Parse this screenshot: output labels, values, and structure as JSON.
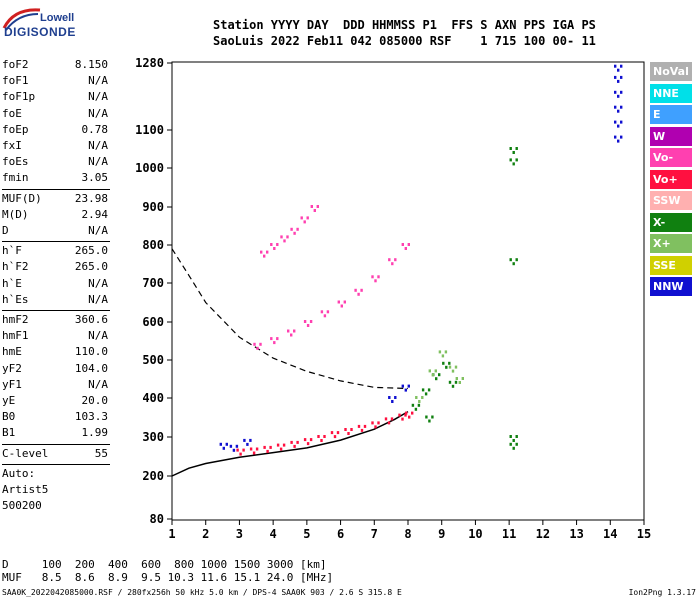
{
  "logo": {
    "line1": "Lowell",
    "line2": "DIGISONDE"
  },
  "header": {
    "row1": "Station YYYY DAY  DDD HHMMSS P1  FFS S AXN PPS IGA PS",
    "row2": "SaoLuis 2022 Feb11 042 085000 RSF    1 715 100 00- 11"
  },
  "params": [
    {
      "name": "foF2",
      "value": "8.150"
    },
    {
      "name": "foF1",
      "value": "N/A"
    },
    {
      "name": "foF1p",
      "value": "N/A"
    },
    {
      "name": "foE",
      "value": "N/A"
    },
    {
      "name": "foEp",
      "value": "0.78"
    },
    {
      "name": "fxI",
      "value": "N/A"
    },
    {
      "name": "foEs",
      "value": "N/A"
    },
    {
      "name": "fmin",
      "value": "3.05"
    },
    {
      "name": "MUF(D)",
      "value": "23.98"
    },
    {
      "name": "M(D)",
      "value": "2.94"
    },
    {
      "name": "D",
      "value": "N/A"
    },
    {
      "name": "h`F",
      "value": "265.0"
    },
    {
      "name": "h`F2",
      "value": "265.0"
    },
    {
      "name": "h`E",
      "value": "N/A"
    },
    {
      "name": "h`Es",
      "value": "N/A"
    },
    {
      "name": "hmF2",
      "value": "360.6"
    },
    {
      "name": "hmF1",
      "value": "N/A"
    },
    {
      "name": "hmE",
      "value": "110.0"
    },
    {
      "name": "yF2",
      "value": "104.0"
    },
    {
      "name": "yF1",
      "value": "N/A"
    },
    {
      "name": "yE",
      "value": "20.0"
    },
    {
      "name": "B0",
      "value": "103.3"
    },
    {
      "name": "B1",
      "value": "1.99"
    },
    {
      "name": "C-level",
      "value": "55"
    },
    {
      "name": "Auto:",
      "value": ""
    },
    {
      "name": "Artist5",
      "value": ""
    },
    {
      "name": "500200",
      "value": ""
    }
  ],
  "legend": [
    {
      "label": "NoVal",
      "color": "#b0b0b0"
    },
    {
      "label": "NNE",
      "color": "#00e0e8"
    },
    {
      "label": "E",
      "color": "#3fa0ff"
    },
    {
      "label": "W",
      "color": "#b000b0"
    },
    {
      "label": "Vo-",
      "color": "#ff40b0"
    },
    {
      "label": "Vo+",
      "color": "#ff1040"
    },
    {
      "label": "SSW",
      "color": "#ffb0b0"
    },
    {
      "label": "X-",
      "color": "#108010"
    },
    {
      "label": "X+",
      "color": "#80c060"
    },
    {
      "label": "SSE",
      "color": "#d0d000"
    },
    {
      "label": "NNW",
      "color": "#1010d0"
    }
  ],
  "bottom_table": {
    "row1": "D     100  200  400  600  800 1000 1500 3000 [km]",
    "row2": "MUF   8.5  8.6  8.9  9.5 10.3 11.6 15.1 24.0 [MHz]"
  },
  "footer": "SAA0K_2022042085000.RSF / 280fx256h 50 kHz 5.0 km / DPS-4 SAA0K 903 / 2.6 S 315.8 E",
  "version": "Ion2Png 1.3.17",
  "chart_data": {
    "type": "scatter",
    "x_ticks": [
      1,
      2,
      3,
      4,
      5,
      6,
      7,
      8,
      9,
      10,
      11,
      12,
      13,
      14,
      15
    ],
    "y_ticks": [
      80,
      200,
      300,
      400,
      500,
      600,
      700,
      800,
      900,
      1000,
      1100,
      1280
    ],
    "xlim": [
      1,
      15
    ],
    "ylim": [
      80,
      1280
    ],
    "grid": false,
    "legend_position": "right",
    "series": [
      {
        "color": "#ff1040",
        "points": [
          [
            3.0,
            265
          ],
          [
            3.4,
            268
          ],
          [
            3.8,
            272
          ],
          [
            4.2,
            278
          ],
          [
            4.6,
            285
          ],
          [
            5.0,
            292
          ],
          [
            5.4,
            300
          ],
          [
            5.8,
            310
          ],
          [
            6.2,
            318
          ],
          [
            6.6,
            326
          ],
          [
            7.0,
            335
          ],
          [
            7.4,
            345
          ],
          [
            7.8,
            355
          ],
          [
            8.0,
            360
          ]
        ]
      },
      {
        "color": "#ff40b0",
        "points": [
          [
            3.5,
            540
          ],
          [
            4.0,
            555
          ],
          [
            4.5,
            575
          ],
          [
            5.0,
            600
          ],
          [
            5.5,
            625
          ],
          [
            6.0,
            650
          ],
          [
            6.5,
            680
          ],
          [
            7.0,
            715
          ],
          [
            7.5,
            760
          ],
          [
            7.9,
            800
          ]
        ]
      },
      {
        "color": "#ff40b0",
        "points": [
          [
            3.7,
            780
          ],
          [
            4.0,
            800
          ],
          [
            4.3,
            820
          ],
          [
            4.6,
            840
          ],
          [
            4.9,
            870
          ],
          [
            5.2,
            900
          ]
        ]
      },
      {
        "color": "#108010",
        "points": [
          [
            8.2,
            380
          ],
          [
            8.5,
            420
          ],
          [
            8.8,
            460
          ],
          [
            9.1,
            490
          ],
          [
            9.3,
            440
          ],
          [
            8.6,
            350
          ]
        ]
      },
      {
        "color": "#80c060",
        "points": [
          [
            8.3,
            400
          ],
          [
            8.7,
            470
          ],
          [
            9.0,
            520
          ],
          [
            9.3,
            480
          ],
          [
            9.5,
            450
          ]
        ]
      },
      {
        "color": "#1010d0",
        "points": [
          [
            2.5,
            280
          ],
          [
            2.8,
            275
          ],
          [
            3.2,
            290
          ],
          [
            7.5,
            400
          ],
          [
            7.9,
            430
          ]
        ]
      },
      {
        "color": "#1010d0",
        "points": [
          [
            14.2,
            1080
          ],
          [
            14.2,
            1120
          ],
          [
            14.2,
            1160
          ],
          [
            14.2,
            1200
          ],
          [
            14.2,
            1240
          ],
          [
            14.2,
            1270
          ]
        ]
      },
      {
        "color": "#108010",
        "points": [
          [
            11.1,
            280
          ],
          [
            11.1,
            300
          ],
          [
            11.1,
            760
          ],
          [
            11.1,
            1020
          ],
          [
            11.1,
            1050
          ]
        ]
      }
    ],
    "profile_solid": [
      [
        1,
        200
      ],
      [
        1.5,
        220
      ],
      [
        2,
        232
      ],
      [
        3,
        248
      ],
      [
        4,
        260
      ],
      [
        5,
        272
      ],
      [
        6,
        292
      ],
      [
        7,
        320
      ],
      [
        7.6,
        345
      ],
      [
        8.0,
        365
      ]
    ],
    "profile_dashed": [
      [
        1,
        790
      ],
      [
        1.5,
        720
      ],
      [
        2,
        650
      ],
      [
        3,
        560
      ],
      [
        4,
        505
      ],
      [
        5,
        470
      ],
      [
        6,
        445
      ],
      [
        7,
        428
      ],
      [
        8,
        425
      ]
    ]
  }
}
